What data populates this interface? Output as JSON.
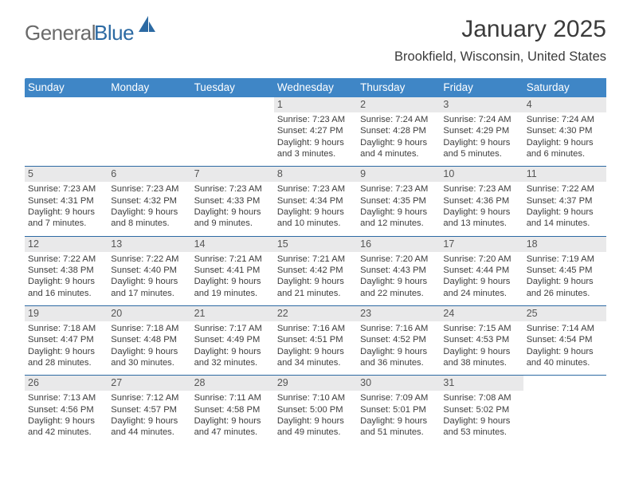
{
  "logo": {
    "word1": "General",
    "word2": "Blue"
  },
  "header": {
    "title": "January 2025",
    "subtitle": "Brookfield, Wisconsin, United States"
  },
  "dow": [
    "Sunday",
    "Monday",
    "Tuesday",
    "Wednesday",
    "Thursday",
    "Friday",
    "Saturday"
  ],
  "weeks": [
    [
      {
        "n": "",
        "sr": "",
        "ss": "",
        "d1": "",
        "d2": ""
      },
      {
        "n": "",
        "sr": "",
        "ss": "",
        "d1": "",
        "d2": ""
      },
      {
        "n": "",
        "sr": "",
        "ss": "",
        "d1": "",
        "d2": ""
      },
      {
        "n": "1",
        "sr": "Sunrise: 7:23 AM",
        "ss": "Sunset: 4:27 PM",
        "d1": "Daylight: 9 hours",
        "d2": "and 3 minutes."
      },
      {
        "n": "2",
        "sr": "Sunrise: 7:24 AM",
        "ss": "Sunset: 4:28 PM",
        "d1": "Daylight: 9 hours",
        "d2": "and 4 minutes."
      },
      {
        "n": "3",
        "sr": "Sunrise: 7:24 AM",
        "ss": "Sunset: 4:29 PM",
        "d1": "Daylight: 9 hours",
        "d2": "and 5 minutes."
      },
      {
        "n": "4",
        "sr": "Sunrise: 7:24 AM",
        "ss": "Sunset: 4:30 PM",
        "d1": "Daylight: 9 hours",
        "d2": "and 6 minutes."
      }
    ],
    [
      {
        "n": "5",
        "sr": "Sunrise: 7:23 AM",
        "ss": "Sunset: 4:31 PM",
        "d1": "Daylight: 9 hours",
        "d2": "and 7 minutes."
      },
      {
        "n": "6",
        "sr": "Sunrise: 7:23 AM",
        "ss": "Sunset: 4:32 PM",
        "d1": "Daylight: 9 hours",
        "d2": "and 8 minutes."
      },
      {
        "n": "7",
        "sr": "Sunrise: 7:23 AM",
        "ss": "Sunset: 4:33 PM",
        "d1": "Daylight: 9 hours",
        "d2": "and 9 minutes."
      },
      {
        "n": "8",
        "sr": "Sunrise: 7:23 AM",
        "ss": "Sunset: 4:34 PM",
        "d1": "Daylight: 9 hours",
        "d2": "and 10 minutes."
      },
      {
        "n": "9",
        "sr": "Sunrise: 7:23 AM",
        "ss": "Sunset: 4:35 PM",
        "d1": "Daylight: 9 hours",
        "d2": "and 12 minutes."
      },
      {
        "n": "10",
        "sr": "Sunrise: 7:23 AM",
        "ss": "Sunset: 4:36 PM",
        "d1": "Daylight: 9 hours",
        "d2": "and 13 minutes."
      },
      {
        "n": "11",
        "sr": "Sunrise: 7:22 AM",
        "ss": "Sunset: 4:37 PM",
        "d1": "Daylight: 9 hours",
        "d2": "and 14 minutes."
      }
    ],
    [
      {
        "n": "12",
        "sr": "Sunrise: 7:22 AM",
        "ss": "Sunset: 4:38 PM",
        "d1": "Daylight: 9 hours",
        "d2": "and 16 minutes."
      },
      {
        "n": "13",
        "sr": "Sunrise: 7:22 AM",
        "ss": "Sunset: 4:40 PM",
        "d1": "Daylight: 9 hours",
        "d2": "and 17 minutes."
      },
      {
        "n": "14",
        "sr": "Sunrise: 7:21 AM",
        "ss": "Sunset: 4:41 PM",
        "d1": "Daylight: 9 hours",
        "d2": "and 19 minutes."
      },
      {
        "n": "15",
        "sr": "Sunrise: 7:21 AM",
        "ss": "Sunset: 4:42 PM",
        "d1": "Daylight: 9 hours",
        "d2": "and 21 minutes."
      },
      {
        "n": "16",
        "sr": "Sunrise: 7:20 AM",
        "ss": "Sunset: 4:43 PM",
        "d1": "Daylight: 9 hours",
        "d2": "and 22 minutes."
      },
      {
        "n": "17",
        "sr": "Sunrise: 7:20 AM",
        "ss": "Sunset: 4:44 PM",
        "d1": "Daylight: 9 hours",
        "d2": "and 24 minutes."
      },
      {
        "n": "18",
        "sr": "Sunrise: 7:19 AM",
        "ss": "Sunset: 4:45 PM",
        "d1": "Daylight: 9 hours",
        "d2": "and 26 minutes."
      }
    ],
    [
      {
        "n": "19",
        "sr": "Sunrise: 7:18 AM",
        "ss": "Sunset: 4:47 PM",
        "d1": "Daylight: 9 hours",
        "d2": "and 28 minutes."
      },
      {
        "n": "20",
        "sr": "Sunrise: 7:18 AM",
        "ss": "Sunset: 4:48 PM",
        "d1": "Daylight: 9 hours",
        "d2": "and 30 minutes."
      },
      {
        "n": "21",
        "sr": "Sunrise: 7:17 AM",
        "ss": "Sunset: 4:49 PM",
        "d1": "Daylight: 9 hours",
        "d2": "and 32 minutes."
      },
      {
        "n": "22",
        "sr": "Sunrise: 7:16 AM",
        "ss": "Sunset: 4:51 PM",
        "d1": "Daylight: 9 hours",
        "d2": "and 34 minutes."
      },
      {
        "n": "23",
        "sr": "Sunrise: 7:16 AM",
        "ss": "Sunset: 4:52 PM",
        "d1": "Daylight: 9 hours",
        "d2": "and 36 minutes."
      },
      {
        "n": "24",
        "sr": "Sunrise: 7:15 AM",
        "ss": "Sunset: 4:53 PM",
        "d1": "Daylight: 9 hours",
        "d2": "and 38 minutes."
      },
      {
        "n": "25",
        "sr": "Sunrise: 7:14 AM",
        "ss": "Sunset: 4:54 PM",
        "d1": "Daylight: 9 hours",
        "d2": "and 40 minutes."
      }
    ],
    [
      {
        "n": "26",
        "sr": "Sunrise: 7:13 AM",
        "ss": "Sunset: 4:56 PM",
        "d1": "Daylight: 9 hours",
        "d2": "and 42 minutes."
      },
      {
        "n": "27",
        "sr": "Sunrise: 7:12 AM",
        "ss": "Sunset: 4:57 PM",
        "d1": "Daylight: 9 hours",
        "d2": "and 44 minutes."
      },
      {
        "n": "28",
        "sr": "Sunrise: 7:11 AM",
        "ss": "Sunset: 4:58 PM",
        "d1": "Daylight: 9 hours",
        "d2": "and 47 minutes."
      },
      {
        "n": "29",
        "sr": "Sunrise: 7:10 AM",
        "ss": "Sunset: 5:00 PM",
        "d1": "Daylight: 9 hours",
        "d2": "and 49 minutes."
      },
      {
        "n": "30",
        "sr": "Sunrise: 7:09 AM",
        "ss": "Sunset: 5:01 PM",
        "d1": "Daylight: 9 hours",
        "d2": "and 51 minutes."
      },
      {
        "n": "31",
        "sr": "Sunrise: 7:08 AM",
        "ss": "Sunset: 5:02 PM",
        "d1": "Daylight: 9 hours",
        "d2": "and 53 minutes."
      },
      {
        "n": "",
        "sr": "",
        "ss": "",
        "d1": "",
        "d2": ""
      }
    ]
  ]
}
